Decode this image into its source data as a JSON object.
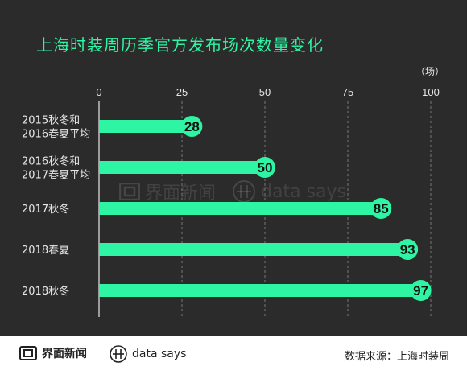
{
  "header": {
    "title": "上海时装周历季官方发布场次数量变化",
    "unit": "（场）"
  },
  "watermark": {
    "brand": "界面新闻",
    "partner": "data says"
  },
  "footer": {
    "brand": "界面新闻",
    "partner": "data says",
    "source": "数据来源：上海时装周"
  },
  "colors": {
    "bar": "#2ef5a4",
    "background": "#2b2b2b",
    "axis": "#e6e6e6",
    "grid": "#777777"
  },
  "chart_data": {
    "type": "bar",
    "orientation": "horizontal",
    "title": "上海时装周历季官方发布场次数量变化",
    "unit": "（场）",
    "categories": [
      [
        "2015秋冬和",
        "2016春夏平均"
      ],
      [
        "2016秋冬和",
        "2017春夏平均"
      ],
      [
        "2017秋冬"
      ],
      [
        "2018春夏"
      ],
      [
        "2018秋冬"
      ]
    ],
    "values": [
      28,
      50,
      85,
      93,
      97
    ],
    "xlim": [
      0,
      100
    ],
    "xticks": [
      0,
      25,
      50,
      75,
      100
    ],
    "grid": "dashed vertical"
  }
}
